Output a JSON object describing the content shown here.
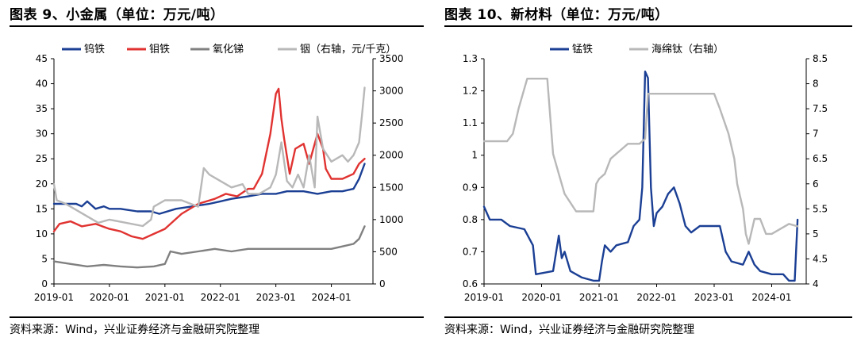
{
  "colors": {
    "navy": "#1b3f94",
    "red": "#e03331",
    "gray": "#808080",
    "lightgray": "#b8b8b8"
  },
  "chart_data": [
    {
      "type": "line",
      "title": "图表 9、小金属（单位：万元/吨）",
      "source": "资料来源：Wind，兴业证券经济与金融研究院整理",
      "x_range": [
        2019.0,
        2024.75
      ],
      "x_ticks": [
        "2019-01",
        "2020-01",
        "2021-01",
        "2022-01",
        "2023-01",
        "2024-01"
      ],
      "y_left": {
        "range": [
          0,
          45
        ],
        "ticks": [
          0,
          5,
          10,
          15,
          20,
          25,
          30,
          35,
          40,
          45
        ]
      },
      "y_right": {
        "range": [
          0,
          3500
        ],
        "ticks": [
          0,
          500,
          1000,
          1500,
          2000,
          2500,
          3000,
          3500
        ]
      },
      "legend_position": "top",
      "grid": false,
      "series": [
        {
          "name": "钨铁",
          "color_key": "navy",
          "axis": "left",
          "x": [
            2019.0,
            2019.4,
            2019.5,
            2019.6,
            2019.75,
            2019.9,
            2020.0,
            2020.2,
            2020.5,
            2020.75,
            2020.9,
            2021.2,
            2021.5,
            2021.8,
            2022.0,
            2022.2,
            2022.5,
            2022.75,
            2023.0,
            2023.2,
            2023.5,
            2023.75,
            2024.0,
            2024.2,
            2024.4,
            2024.5,
            2024.6
          ],
          "y": [
            16,
            16,
            15.5,
            16.5,
            15,
            15.5,
            15,
            15,
            14.5,
            14.5,
            14,
            15,
            15.5,
            16,
            16.5,
            17,
            17.5,
            18,
            18,
            18.5,
            18.5,
            18,
            18.5,
            18.5,
            19,
            21,
            24
          ]
        },
        {
          "name": "钼铁",
          "color_key": "red",
          "axis": "left",
          "x": [
            2019.0,
            2019.1,
            2019.3,
            2019.5,
            2019.75,
            2020.0,
            2020.2,
            2020.4,
            2020.6,
            2020.8,
            2021.0,
            2021.3,
            2021.6,
            2021.9,
            2022.1,
            2022.3,
            2022.5,
            2022.6,
            2022.75,
            2022.9,
            2023.0,
            2023.05,
            2023.1,
            2023.15,
            2023.25,
            2023.35,
            2023.5,
            2023.6,
            2023.75,
            2023.85,
            2023.9,
            2024.0,
            2024.2,
            2024.4,
            2024.5,
            2024.6
          ],
          "y": [
            10.5,
            12,
            12.5,
            11.5,
            12,
            11,
            10.5,
            9.5,
            9,
            10,
            11,
            14,
            16,
            17,
            18,
            17.5,
            19,
            19,
            22,
            30,
            38,
            39,
            33,
            29,
            22,
            27,
            28,
            24,
            30,
            27,
            23,
            21,
            21,
            22,
            24,
            25
          ]
        },
        {
          "name": "氧化锑",
          "color_key": "gray",
          "axis": "left",
          "x": [
            2019.0,
            2019.3,
            2019.6,
            2019.9,
            2020.2,
            2020.5,
            2020.8,
            2021.0,
            2021.1,
            2021.3,
            2021.6,
            2021.9,
            2022.2,
            2022.5,
            2022.8,
            2023.1,
            2023.4,
            2023.7,
            2024.0,
            2024.2,
            2024.4,
            2024.5,
            2024.6
          ],
          "y": [
            4.5,
            4,
            3.5,
            3.8,
            3.5,
            3.3,
            3.5,
            4,
            6.5,
            6,
            6.5,
            7,
            6.5,
            7,
            7,
            7,
            7,
            7,
            7,
            7.5,
            8,
            9,
            11.5
          ]
        },
        {
          "name": "铟（右轴，元/千克）",
          "color_key": "lightgray",
          "axis": "right",
          "x": [
            2019.0,
            2019.05,
            2019.2,
            2019.4,
            2019.6,
            2019.8,
            2020.0,
            2020.3,
            2020.6,
            2020.75,
            2020.8,
            2021.0,
            2021.3,
            2021.6,
            2021.7,
            2021.8,
            2022.0,
            2022.2,
            2022.4,
            2022.5,
            2022.7,
            2022.9,
            2023.0,
            2023.1,
            2023.2,
            2023.3,
            2023.4,
            2023.5,
            2023.6,
            2023.7,
            2023.75,
            2023.85,
            2024.0,
            2024.2,
            2024.3,
            2024.4,
            2024.5,
            2024.55,
            2024.6
          ],
          "y": [
            1550,
            1300,
            1250,
            1150,
            1050,
            950,
            1000,
            950,
            900,
            1000,
            1200,
            1300,
            1300,
            1200,
            1800,
            1700,
            1600,
            1500,
            1550,
            1400,
            1400,
            1500,
            1700,
            2200,
            1600,
            1500,
            1700,
            1500,
            2000,
            1500,
            2600,
            2100,
            1900,
            2000,
            1900,
            2000,
            2200,
            2600,
            3050
          ]
        }
      ]
    },
    {
      "type": "line",
      "title": "图表 10、新材料（单位：万元/吨）",
      "source": "资料来源：Wind，兴业证券经济与金融研究院整理",
      "x_range": [
        2019.0,
        2024.6
      ],
      "x_ticks": [
        "2019-01",
        "2020-01",
        "2021-01",
        "2022-01",
        "2023-01",
        "2024-01"
      ],
      "y_left": {
        "range": [
          0.6,
          1.3
        ],
        "ticks": [
          0.6,
          0.7,
          0.8,
          0.9,
          1,
          1.1,
          1.2,
          1.3
        ]
      },
      "y_right": {
        "range": [
          4,
          8.5
        ],
        "ticks": [
          4,
          4.5,
          5,
          5.5,
          6,
          6.5,
          7,
          7.5,
          8,
          8.5
        ]
      },
      "legend_position": "top",
      "grid": false,
      "series": [
        {
          "name": "锰铁",
          "color_key": "navy",
          "axis": "left",
          "x": [
            2019.0,
            2019.1,
            2019.3,
            2019.45,
            2019.7,
            2019.85,
            2019.9,
            2020.2,
            2020.3,
            2020.35,
            2020.4,
            2020.5,
            2020.7,
            2020.9,
            2021.0,
            2021.05,
            2021.1,
            2021.2,
            2021.3,
            2021.5,
            2021.6,
            2021.7,
            2021.75,
            2021.8,
            2021.85,
            2021.9,
            2021.95,
            2022.0,
            2022.1,
            2022.2,
            2022.3,
            2022.4,
            2022.5,
            2022.6,
            2022.75,
            2023.0,
            2023.1,
            2023.2,
            2023.3,
            2023.5,
            2023.6,
            2023.7,
            2023.8,
            2024.0,
            2024.2,
            2024.3,
            2024.4,
            2024.45
          ],
          "y": [
            0.84,
            0.8,
            0.8,
            0.78,
            0.77,
            0.72,
            0.63,
            0.64,
            0.75,
            0.68,
            0.7,
            0.64,
            0.62,
            0.61,
            0.61,
            0.67,
            0.72,
            0.7,
            0.72,
            0.73,
            0.78,
            0.8,
            0.9,
            1.26,
            1.24,
            0.9,
            0.78,
            0.82,
            0.84,
            0.88,
            0.9,
            0.85,
            0.78,
            0.76,
            0.78,
            0.78,
            0.78,
            0.7,
            0.67,
            0.66,
            0.7,
            0.66,
            0.64,
            0.63,
            0.63,
            0.61,
            0.61,
            0.8
          ]
        },
        {
          "name": "海绵钛（右轴）",
          "color_key": "lightgray",
          "axis": "right",
          "x": [
            2019.0,
            2019.4,
            2019.5,
            2019.6,
            2019.75,
            2020.1,
            2020.2,
            2020.3,
            2020.4,
            2020.6,
            2020.75,
            2020.9,
            2020.95,
            2021.0,
            2021.1,
            2021.2,
            2021.3,
            2021.4,
            2021.5,
            2021.7,
            2021.8,
            2021.85,
            2022.0,
            2022.5,
            2022.75,
            2023.0,
            2023.1,
            2023.25,
            2023.35,
            2023.4,
            2023.5,
            2023.55,
            2023.6,
            2023.7,
            2023.8,
            2023.9,
            2024.0,
            2024.3,
            2024.45
          ],
          "y": [
            6.85,
            6.85,
            7,
            7.5,
            8.1,
            8.1,
            6.6,
            6.2,
            5.8,
            5.45,
            5.45,
            5.45,
            6.0,
            6.1,
            6.2,
            6.5,
            6.6,
            6.7,
            6.8,
            6.8,
            6.9,
            7.8,
            7.8,
            7.8,
            7.8,
            7.8,
            7.5,
            7.0,
            6.5,
            6.0,
            5.5,
            5.0,
            4.8,
            5.3,
            5.3,
            5.0,
            5.0,
            5.2,
            5.15
          ]
        }
      ]
    }
  ]
}
